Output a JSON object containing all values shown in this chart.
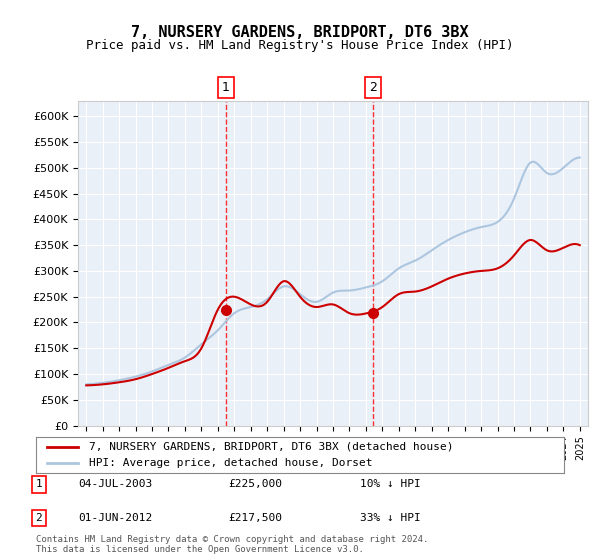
{
  "title": "7, NURSERY GARDENS, BRIDPORT, DT6 3BX",
  "subtitle": "Price paid vs. HM Land Registry's House Price Index (HPI)",
  "ylabel_ticks": [
    "£0",
    "£50K",
    "£100K",
    "£150K",
    "£200K",
    "£250K",
    "£300K",
    "£350K",
    "£400K",
    "£450K",
    "£500K",
    "£550K",
    "£600K"
  ],
  "ylim": [
    0,
    620000
  ],
  "xlim_start": 1995.0,
  "xlim_end": 2025.5,
  "legend_line1": "7, NURSERY GARDENS, BRIDPORT, DT6 3BX (detached house)",
  "legend_line2": "HPI: Average price, detached house, Dorset",
  "sale1_date": 2003.5,
  "sale1_price": 225000,
  "sale1_label": "1",
  "sale2_date": 2012.42,
  "sale2_price": 217500,
  "sale2_label": "2",
  "annotation1_date": "04-JUL-2003",
  "annotation1_price": "£225,000",
  "annotation1_hpi": "10% ↓ HPI",
  "annotation2_date": "01-JUN-2012",
  "annotation2_price": "£217,500",
  "annotation2_hpi": "33% ↓ HPI",
  "footer": "Contains HM Land Registry data © Crown copyright and database right 2024.\nThis data is licensed under the Open Government Licence v3.0.",
  "hpi_color": "#adc6e0",
  "price_color": "#cc0000",
  "sale_dot_color": "#cc0000",
  "background_plot": "#eaf0f8",
  "background_fig": "#ffffff",
  "grid_color": "#ffffff",
  "marker1_box_color": "#cc0000"
}
